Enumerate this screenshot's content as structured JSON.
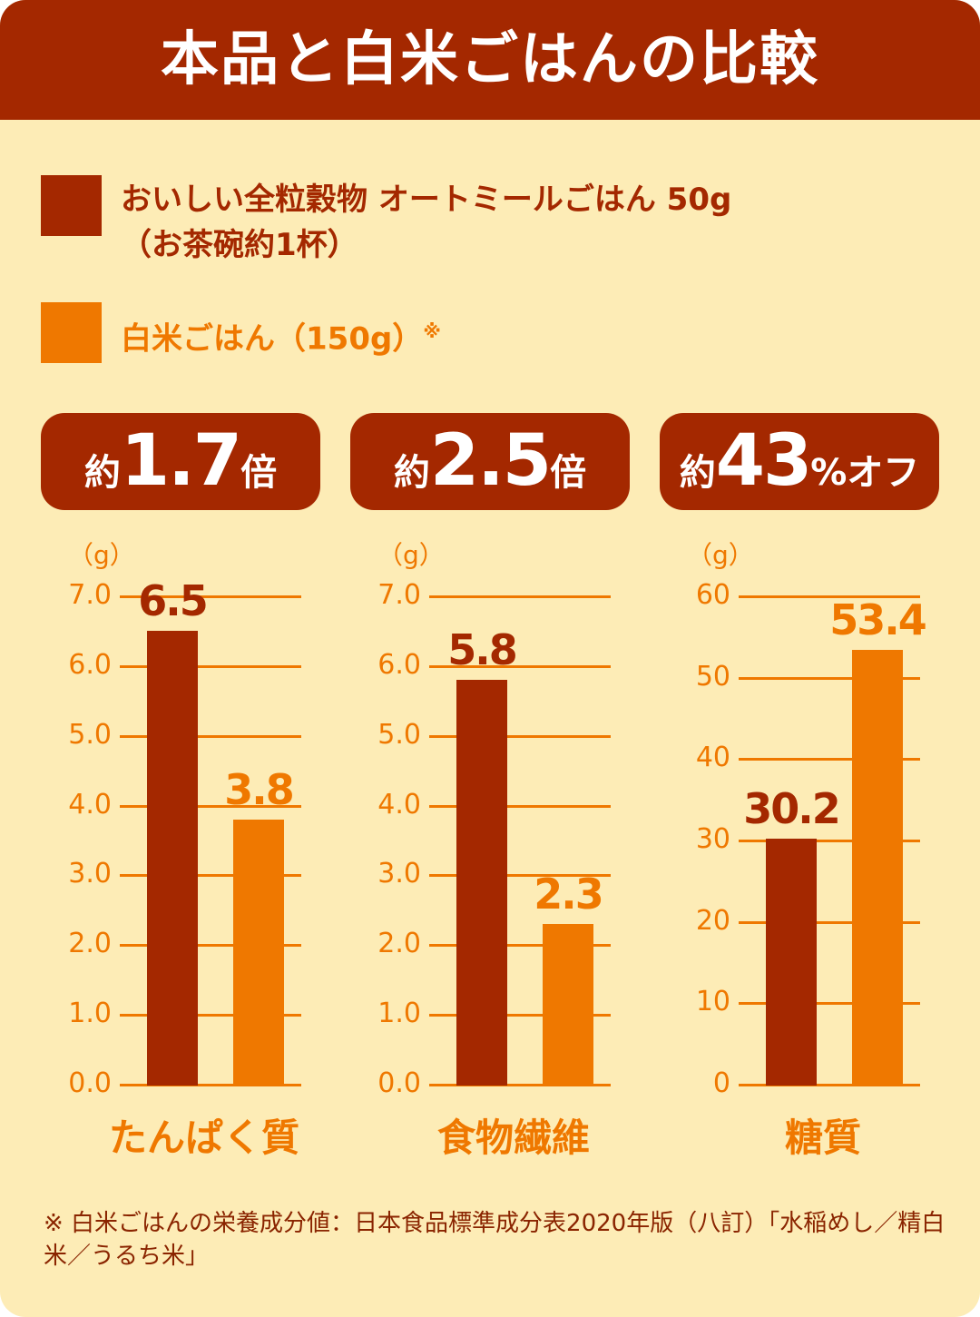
{
  "title": "本品と白米ごはんの比較",
  "legend": [
    {
      "label": "おいしい全粒穀物 オートミールごはん 50g",
      "sub": "（お茶碗約1杯）",
      "color": "#a42800"
    },
    {
      "label": "白米ごはん（150g）",
      "mark": "※",
      "color": "#ef7800"
    }
  ],
  "badges": [
    {
      "pre": "約",
      "num": "1.7",
      "post": "倍"
    },
    {
      "pre": "約",
      "num": "2.5",
      "post": "倍"
    },
    {
      "pre": "約",
      "num": "43",
      "post": "%オフ"
    }
  ],
  "chart_data": [
    {
      "type": "bar",
      "title": "たんぱく質",
      "ylabel": "（g）",
      "ylim": [
        0,
        7
      ],
      "ticks": [
        "0.0",
        "1.0",
        "2.0",
        "3.0",
        "4.0",
        "5.0",
        "6.0",
        "7.0"
      ],
      "series": [
        {
          "name": "オートミールごはん",
          "values": [
            6.5
          ],
          "label": "6.5"
        },
        {
          "name": "白米ごはん",
          "values": [
            3.8
          ],
          "label": "3.8"
        }
      ]
    },
    {
      "type": "bar",
      "title": "食物繊維",
      "ylabel": "（g）",
      "ylim": [
        0,
        7
      ],
      "ticks": [
        "0.0",
        "1.0",
        "2.0",
        "3.0",
        "4.0",
        "5.0",
        "6.0",
        "7.0"
      ],
      "series": [
        {
          "name": "オートミールごはん",
          "values": [
            5.8
          ],
          "label": "5.8"
        },
        {
          "name": "白米ごはん",
          "values": [
            2.3
          ],
          "label": "2.3"
        }
      ]
    },
    {
      "type": "bar",
      "title": "糖質",
      "ylabel": "（g）",
      "ylim": [
        0,
        60
      ],
      "ticks": [
        "0",
        "10",
        "20",
        "30",
        "40",
        "50",
        "60"
      ],
      "series": [
        {
          "name": "オートミールごはん",
          "values": [
            30.2
          ],
          "label": "30.2"
        },
        {
          "name": "白米ごはん",
          "values": [
            53.4
          ],
          "label": "53.4"
        }
      ]
    }
  ],
  "footnote": "※ 白米ごはんの栄養成分値：日本食品標準成分表2020年版（八訂）「水稲めし／精白米／うるち米」"
}
